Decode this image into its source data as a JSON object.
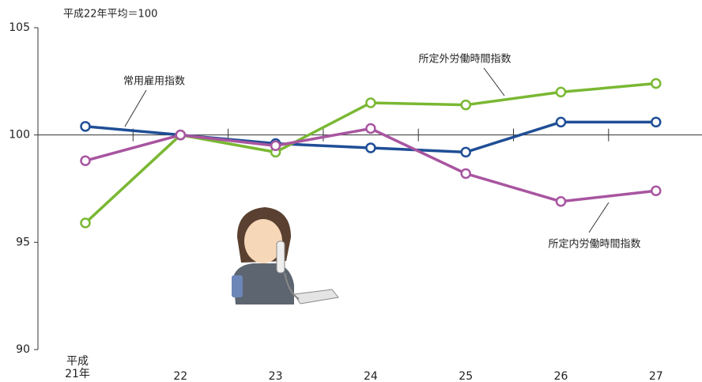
{
  "chart_data": {
    "type": "line",
    "annotation": "平成22年平均＝100",
    "categories": [
      "平成\n21年",
      "22",
      "23",
      "24",
      "25",
      "26",
      "27"
    ],
    "series": [
      {
        "name": "常用雇用指数",
        "color": "#1f4e96",
        "values": [
          100.4,
          100.0,
          99.6,
          99.4,
          99.2,
          100.6,
          100.6
        ]
      },
      {
        "name": "所定外労働時間指数",
        "color": "#7ab833",
        "values": [
          95.9,
          100.0,
          99.2,
          101.5,
          101.4,
          102.0,
          102.4
        ]
      },
      {
        "name": "所定内労働時間指数",
        "color": "#a855a0",
        "values": [
          98.8,
          100.0,
          99.5,
          100.3,
          98.2,
          96.9,
          97.4
        ]
      }
    ],
    "ylim": [
      90,
      105
    ],
    "yticks": [
      90,
      95,
      100,
      105
    ],
    "baseline": 100
  }
}
